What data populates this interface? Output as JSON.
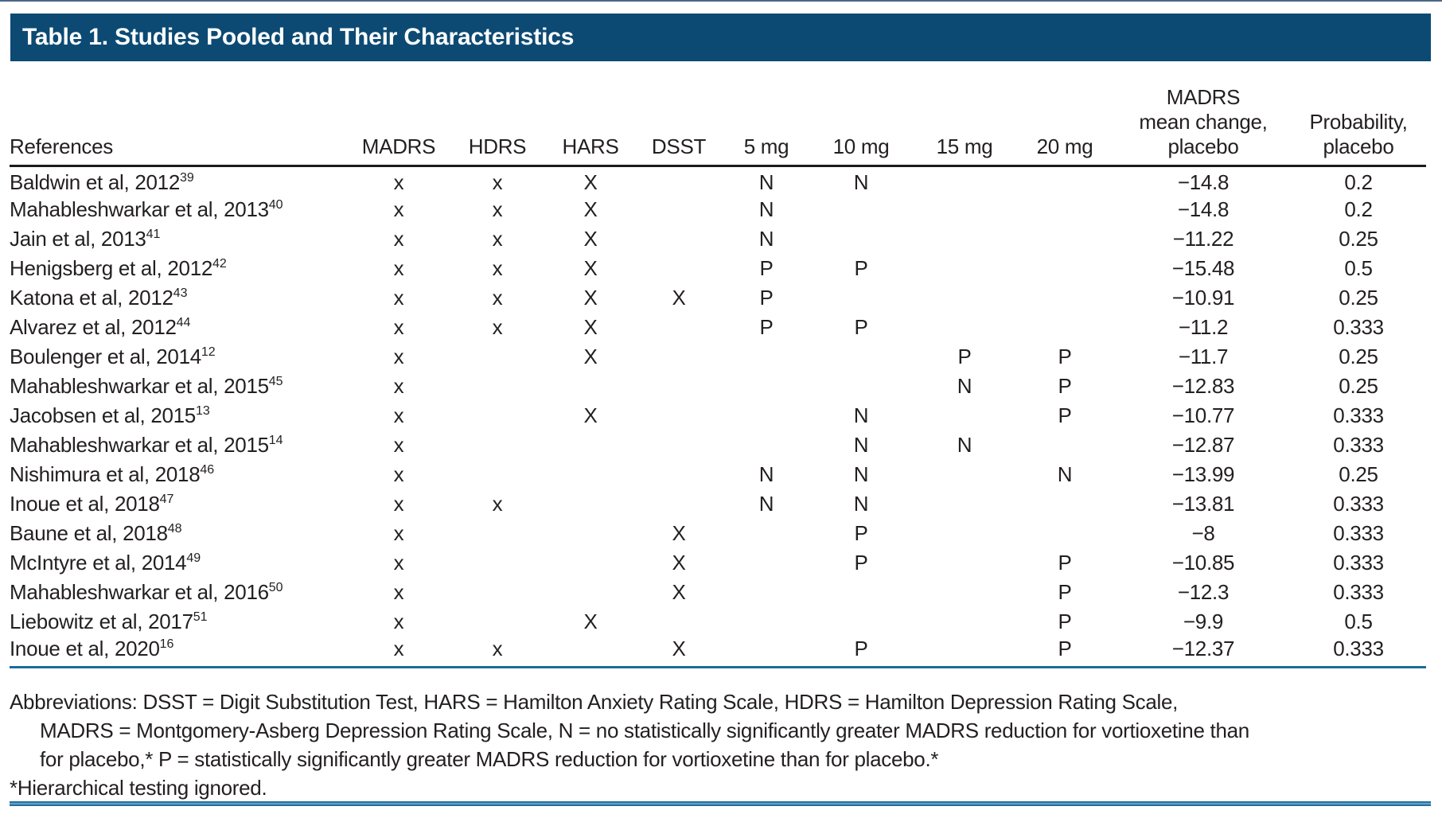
{
  "title": "Table 1. Studies Pooled and Their Characteristics",
  "colors": {
    "title_bar_bg": "#0c4a73",
    "title_text": "#ffffff",
    "body_text": "#231f20",
    "header_underline": "#1e1a1b",
    "blue_rule": "#1c6b9a"
  },
  "table": {
    "columns": [
      {
        "key": "ref",
        "lines": [
          "References"
        ]
      },
      {
        "key": "madrs",
        "lines": [
          "MADRS"
        ]
      },
      {
        "key": "hdrs",
        "lines": [
          "HDRS"
        ]
      },
      {
        "key": "hars",
        "lines": [
          "HARS"
        ]
      },
      {
        "key": "dsst",
        "lines": [
          "DSST"
        ]
      },
      {
        "key": "5mg",
        "lines": [
          "5 mg"
        ]
      },
      {
        "key": "10mg",
        "lines": [
          "10 mg"
        ]
      },
      {
        "key": "15mg",
        "lines": [
          "15 mg"
        ]
      },
      {
        "key": "20mg",
        "lines": [
          "20 mg"
        ]
      },
      {
        "key": "mean",
        "lines": [
          "MADRS",
          "mean change,",
          "placebo"
        ]
      },
      {
        "key": "prob",
        "lines": [
          "Probability,",
          "placebo"
        ]
      }
    ],
    "rows": [
      {
        "ref": "Baldwin et al, 2012",
        "sup": "39",
        "cells": [
          "x",
          "x",
          "X",
          "",
          "N",
          "N",
          "",
          "",
          "−14.8",
          "0.2"
        ]
      },
      {
        "ref": "Mahableshwarkar et al, 2013",
        "sup": "40",
        "cells": [
          "x",
          "x",
          "X",
          "",
          "N",
          "",
          "",
          "",
          "−14.8",
          "0.2"
        ]
      },
      {
        "ref": "Jain et al, 2013",
        "sup": "41",
        "cells": [
          "x",
          "x",
          "X",
          "",
          "N",
          "",
          "",
          "",
          "−11.22",
          "0.25"
        ]
      },
      {
        "ref": "Henigsberg et al, 2012",
        "sup": "42",
        "cells": [
          "x",
          "x",
          "X",
          "",
          "P",
          "P",
          "",
          "",
          "−15.48",
          "0.5"
        ]
      },
      {
        "ref": "Katona et al, 2012",
        "sup": "43",
        "cells": [
          "x",
          "x",
          "X",
          "X",
          "P",
          "",
          "",
          "",
          "−10.91",
          "0.25"
        ]
      },
      {
        "ref": "Alvarez et al, 2012",
        "sup": "44",
        "cells": [
          "x",
          "x",
          "X",
          "",
          "P",
          "P",
          "",
          "",
          "−11.2",
          "0.333"
        ]
      },
      {
        "ref": "Boulenger et al, 2014",
        "sup": "12",
        "cells": [
          "x",
          "",
          "X",
          "",
          "",
          "",
          "P",
          "P",
          "−11.7",
          "0.25"
        ]
      },
      {
        "ref": "Mahableshwarkar et al, 2015",
        "sup": "45",
        "cells": [
          "x",
          "",
          "",
          "",
          "",
          "",
          "N",
          "P",
          "−12.83",
          "0.25"
        ]
      },
      {
        "ref": "Jacobsen et al, 2015",
        "sup": "13",
        "cells": [
          "x",
          "",
          "X",
          "",
          "",
          "N",
          "",
          "P",
          "−10.77",
          "0.333"
        ]
      },
      {
        "ref": "Mahableshwarkar et al, 2015",
        "sup": "14",
        "cells": [
          "x",
          "",
          "",
          "",
          "",
          "N",
          "N",
          "",
          "−12.87",
          "0.333"
        ]
      },
      {
        "ref": "Nishimura et al, 2018",
        "sup": "46",
        "cells": [
          "x",
          "",
          "",
          "",
          "N",
          "N",
          "",
          "N",
          "−13.99",
          "0.25"
        ]
      },
      {
        "ref": "Inoue et al, 2018",
        "sup": "47",
        "cells": [
          "x",
          "x",
          "",
          "",
          "N",
          "N",
          "",
          "",
          "−13.81",
          "0.333"
        ]
      },
      {
        "ref": "Baune et al, 2018",
        "sup": "48",
        "cells": [
          "x",
          "",
          "",
          "X",
          "",
          "P",
          "",
          "",
          "−8",
          "0.333"
        ]
      },
      {
        "ref": "McIntyre et al, 2014",
        "sup": "49",
        "cells": [
          "x",
          "",
          "",
          "X",
          "",
          "P",
          "",
          "P",
          "−10.85",
          "0.333"
        ]
      },
      {
        "ref": "Mahableshwarkar et al, 2016",
        "sup": "50",
        "cells": [
          "x",
          "",
          "",
          "X",
          "",
          "",
          "",
          "P",
          "−12.3",
          "0.333"
        ]
      },
      {
        "ref": "Liebowitz et al, 2017",
        "sup": "51",
        "cells": [
          "x",
          "",
          "X",
          "",
          "",
          "",
          "",
          "P",
          "−9.9",
          "0.5"
        ]
      },
      {
        "ref": "Inoue et al, 2020",
        "sup": "16",
        "cells": [
          "x",
          "x",
          "",
          "X",
          "",
          "P",
          "",
          "P",
          "−12.37",
          "0.333"
        ]
      }
    ]
  },
  "footnotes": {
    "lines": [
      {
        "text": "Abbreviations: DSST = Digit Substitution Test, HARS = Hamilton Anxiety Rating Scale, HDRS = Hamilton Depression Rating Scale,",
        "indent": false
      },
      {
        "text": "MADRS = Montgomery-Asberg Depression Rating Scale, N = no statistically significantly greater MADRS reduction for vortioxetine than",
        "indent": true
      },
      {
        "text": "for placebo,* P = statistically significantly greater MADRS reduction for vortioxetine than for placebo.*",
        "indent": true
      },
      {
        "text": "*Hierarchical testing ignored.",
        "indent": false
      }
    ]
  }
}
